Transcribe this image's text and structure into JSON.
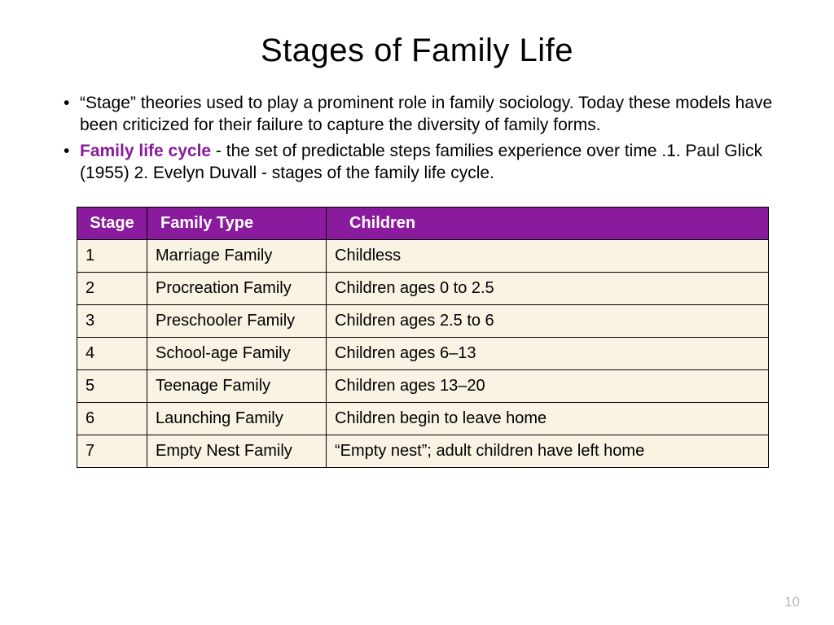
{
  "title": "Stages of Family Life",
  "bullets": [
    {
      "text": "“Stage” theories used to play a prominent role in family sociology. Today these models have been criticized for their failure to capture the diversity of family forms."
    },
    {
      "term": "Family life cycle",
      "rest": " - the set of predictable steps families experience over time .1. Paul Glick (1955)  2. Evelyn Duvall - stages of the family life cycle."
    }
  ],
  "table": {
    "headers": {
      "stage": "Stage",
      "type": "Family Type",
      "children": "Children"
    },
    "rows": [
      {
        "stage": "1",
        "type": "Marriage Family",
        "children": "Childless"
      },
      {
        "stage": "2",
        "type": "Procreation Family",
        "children": "Children ages 0 to 2.5"
      },
      {
        "stage": "3",
        "type": "Preschooler Family",
        "children": "Children ages 2.5 to 6"
      },
      {
        "stage": "4",
        "type": "School-age Family",
        "children": "Children ages 6–13"
      },
      {
        "stage": "5",
        "type": "Teenage Family",
        "children": "Children ages 13–20"
      },
      {
        "stage": "6",
        "type": "Launching Family",
        "children": "Children begin to leave home"
      },
      {
        "stage": "7",
        "type": "Empty Nest Family",
        "children": "“Empty nest”; adult children have left home"
      }
    ],
    "header_bg": "#8a1b9c",
    "header_color": "#ffffff",
    "cell_bg": "#f8f3e3",
    "border_color": "#000000"
  },
  "term_color": "#8a1b9c",
  "page_number": "10"
}
